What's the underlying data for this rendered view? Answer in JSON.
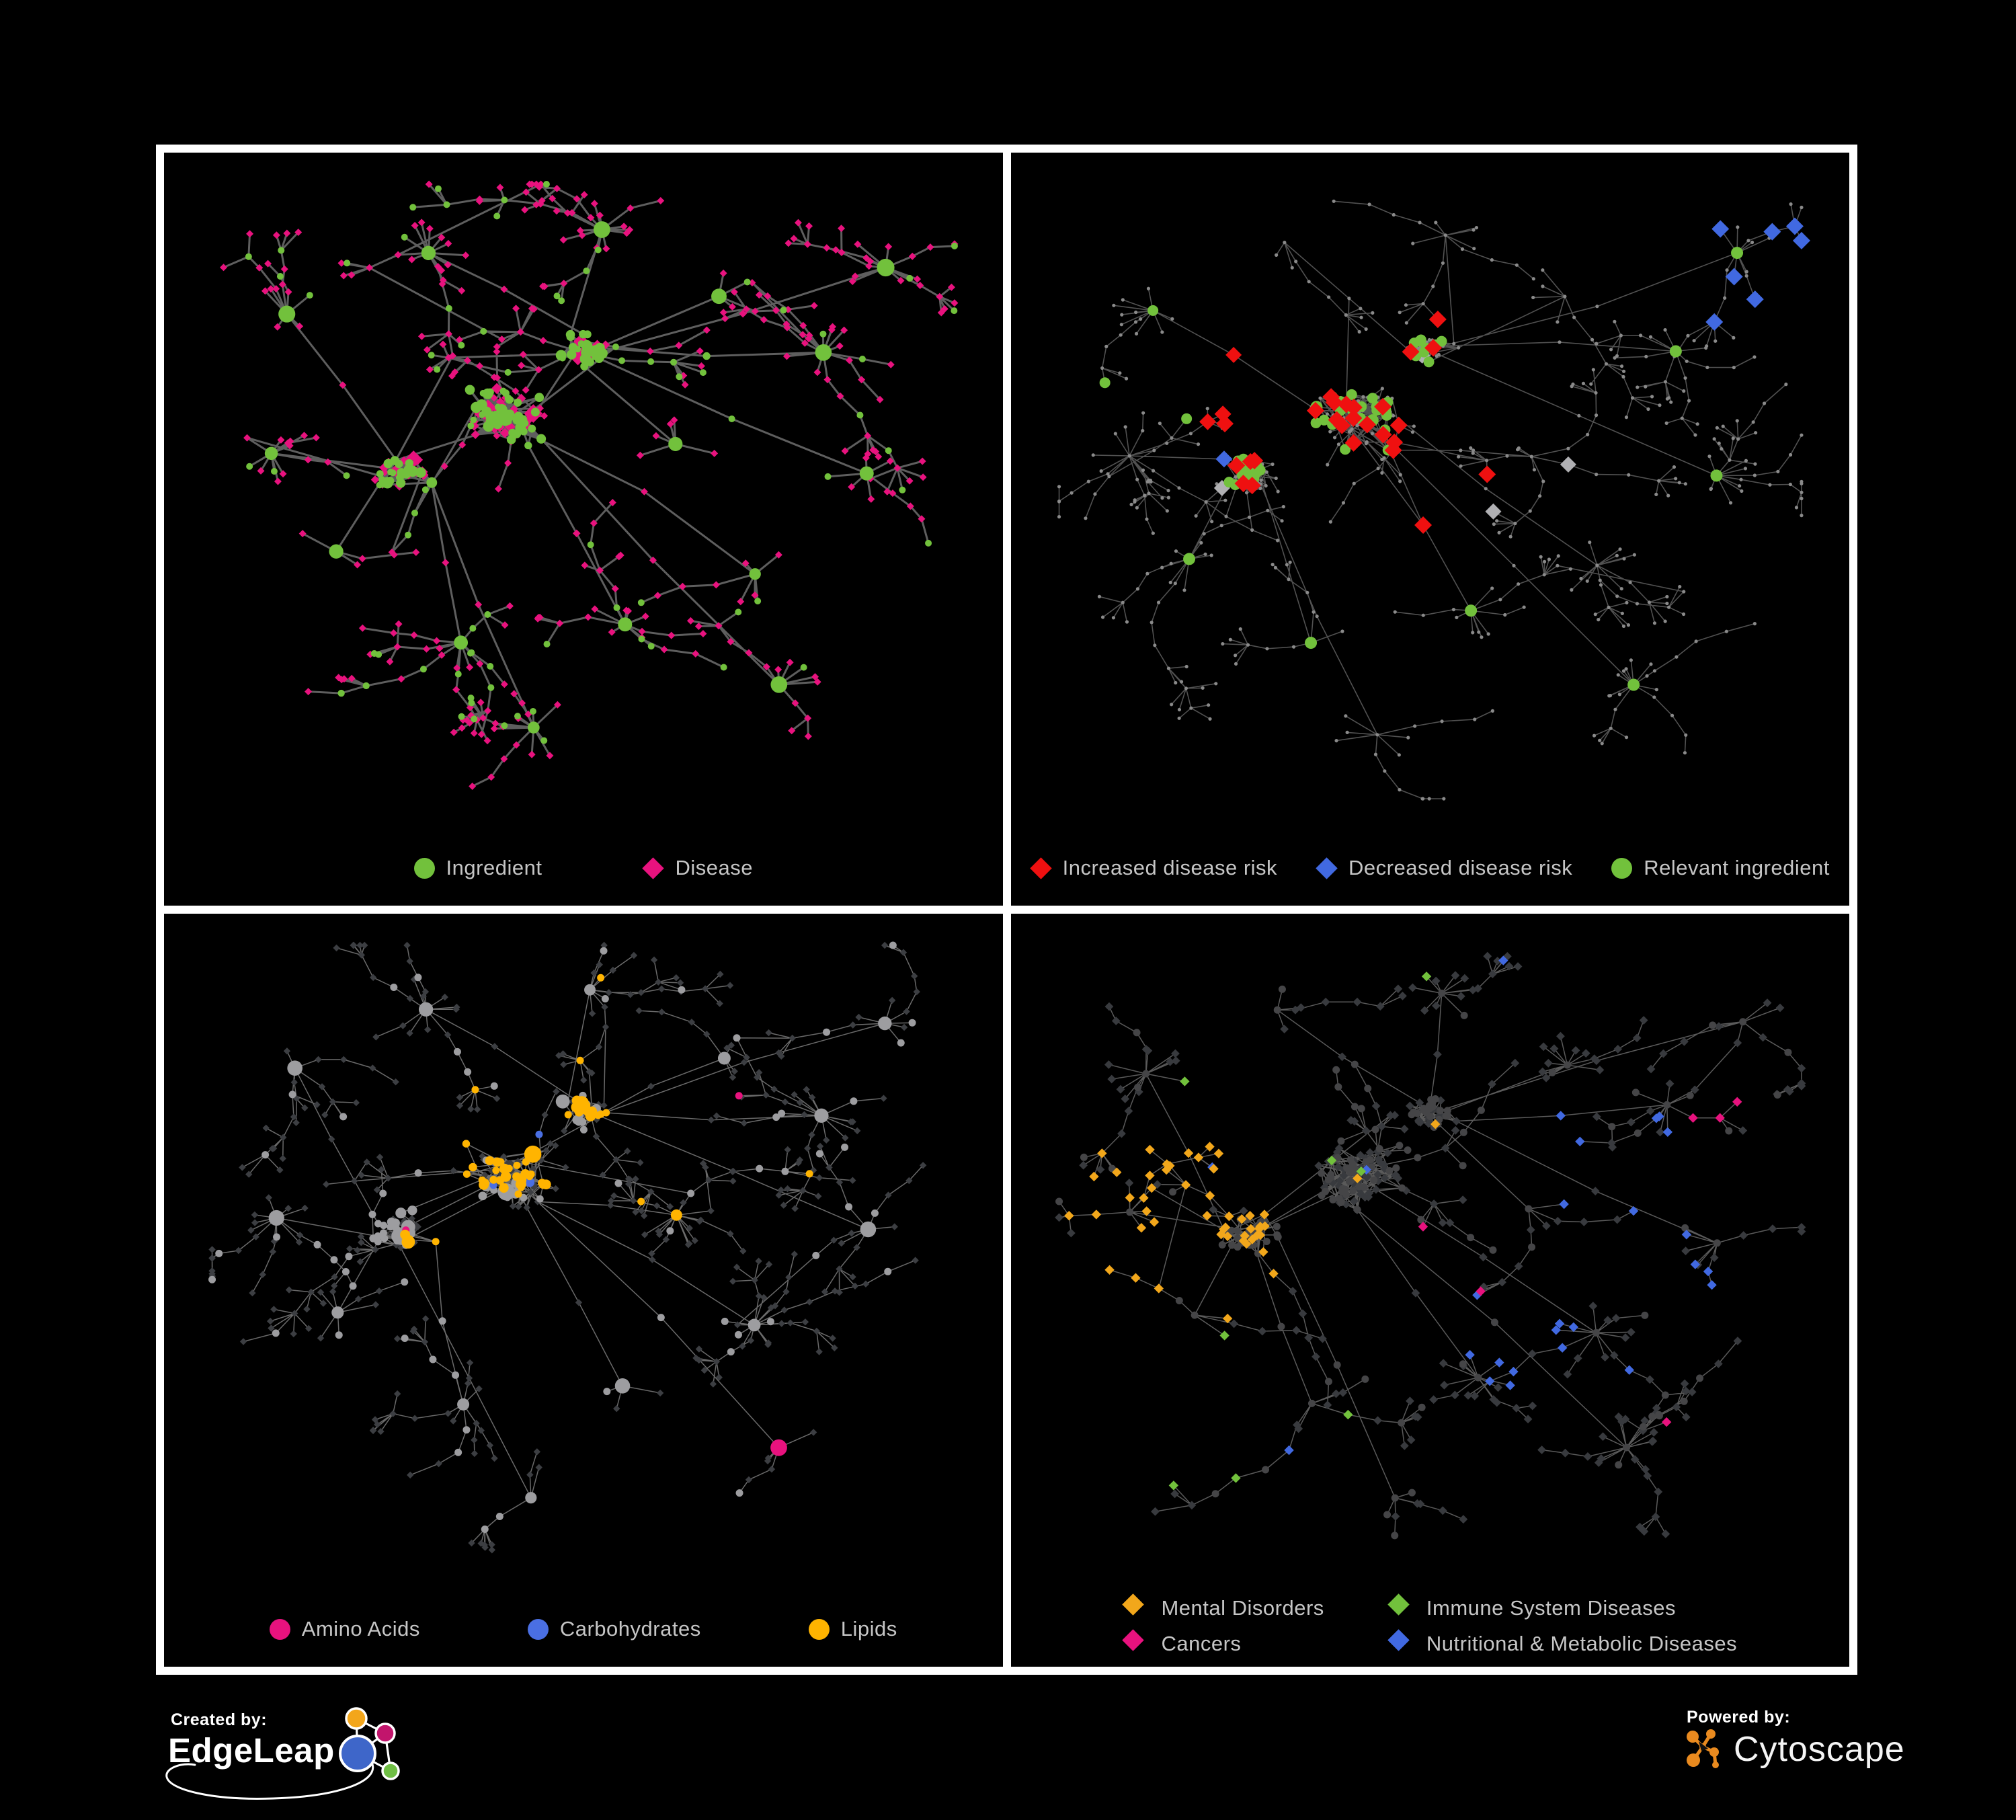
{
  "figure": {
    "background_color": "#000000",
    "frame_color": "#ffffff",
    "legend_text_color": "#C6C6C6"
  },
  "panels": [
    {
      "id": "ingredient-disease-network",
      "legend": [
        {
          "label": "Ingredient",
          "shape": "circle",
          "color": "#72C13C"
        },
        {
          "label": "Disease",
          "shape": "diamond",
          "color": "#E8127E"
        }
      ]
    },
    {
      "id": "disease-risk-network",
      "legend": [
        {
          "label": "Increased disease risk",
          "shape": "diamond",
          "color": "#EF1010"
        },
        {
          "label": "Decreased disease risk",
          "shape": "diamond",
          "color": "#4169E1"
        },
        {
          "label": "Relevant ingredient",
          "shape": "circle",
          "color": "#72C13C"
        }
      ]
    },
    {
      "id": "macronutrient-network",
      "legend": [
        {
          "label": "Amino Acids",
          "shape": "circle",
          "color": "#E8127E"
        },
        {
          "label": "Carbohydrates",
          "shape": "circle",
          "color": "#4A6FE3"
        },
        {
          "label": "Lipids",
          "shape": "circle",
          "color": "#FFB400"
        }
      ]
    },
    {
      "id": "disease-category-network",
      "legend": [
        {
          "label": "Mental Disorders",
          "shape": "diamond",
          "color": "#F2A71B"
        },
        {
          "label": "Immune System Diseases",
          "shape": "diamond",
          "color": "#72C13C"
        },
        {
          "label": "Cancers",
          "shape": "diamond",
          "color": "#E8127E"
        },
        {
          "label": "Nutritional & Metabolic Diseases",
          "shape": "diamond",
          "color": "#4169E1"
        }
      ]
    }
  ],
  "network_style": {
    "edge_colors": {
      "p1": "#6E6E6E",
      "p2": "#5F5F5F",
      "p3": "#7C7C7C",
      "p4": "#6A6A6A"
    },
    "base_colors": {
      "p2_dot": "#8A8A8A",
      "p2_neutral_diamond": "#B0B0B3",
      "p3_circle": "#9D9DA0",
      "p3_diamond": "#3C3E42",
      "p4_circle": "#454547",
      "p4_diamond": "#383A3E"
    }
  },
  "footer": {
    "created_by_label": "Created by:",
    "edgeleap_name": "EdgeLeap",
    "powered_by_label": "Powered by:",
    "cytoscape_name": "Cytoscape",
    "edgeleap_logo": {
      "blue": "#3E66C9",
      "orange": "#F3A61B",
      "magenta": "#C2156C",
      "green": "#6FBE44"
    },
    "cytoscape_orange": "#E98A1F"
  }
}
